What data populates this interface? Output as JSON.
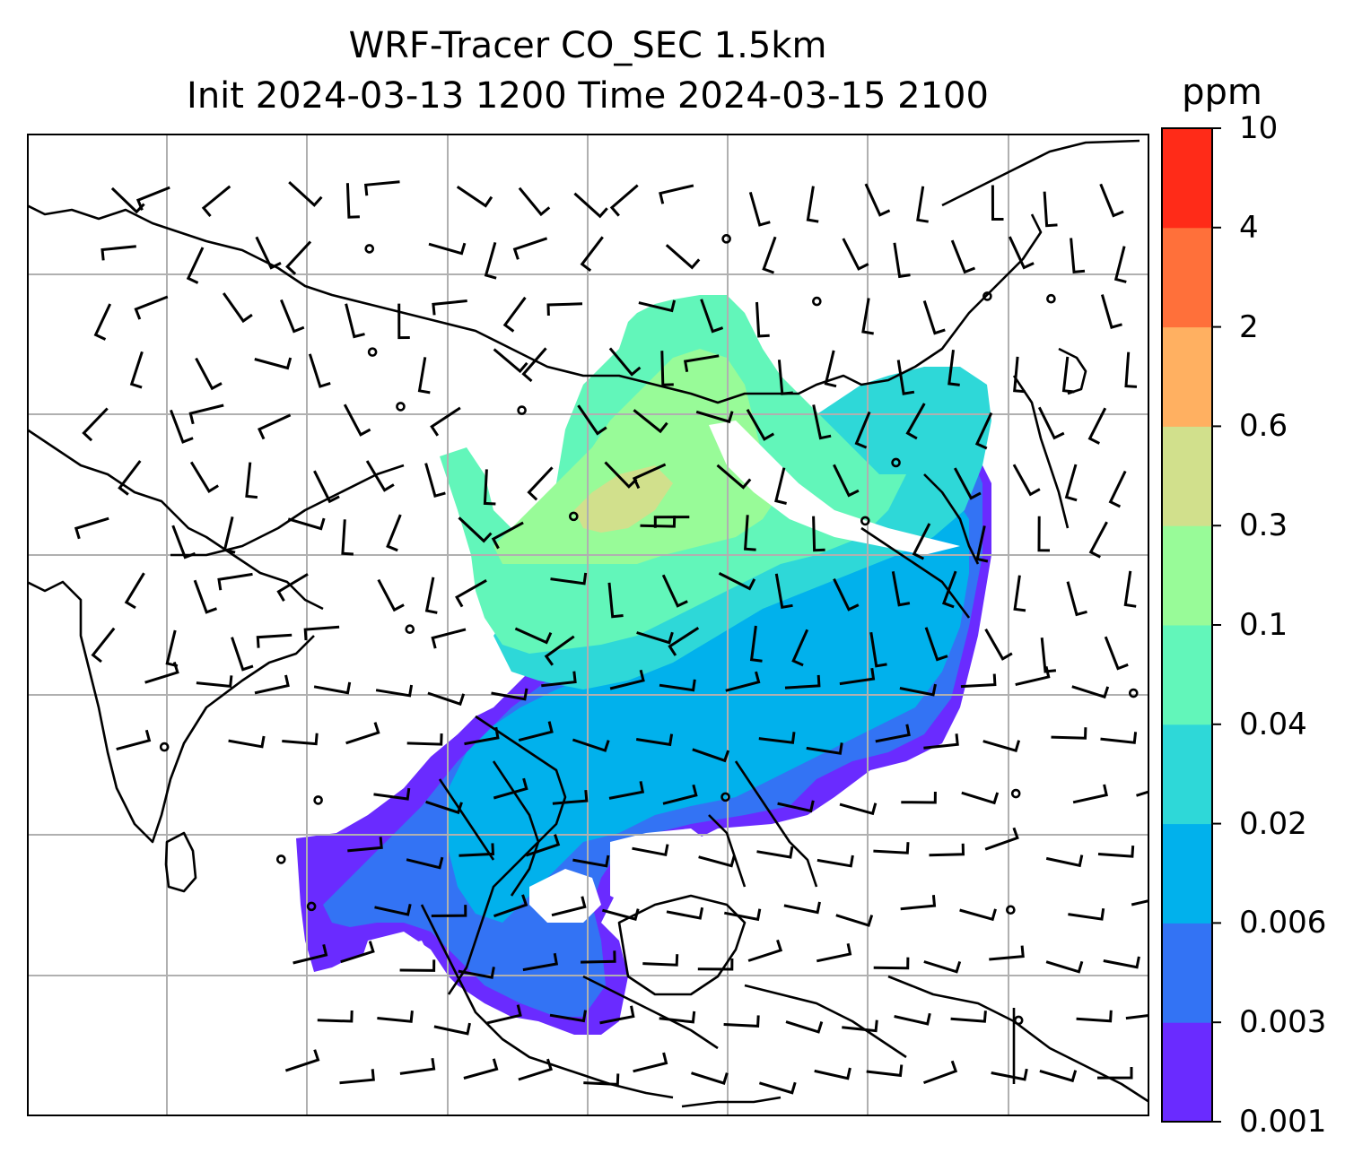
{
  "title_line1": "WRF-Tracer CO_SEC 1.5km",
  "title_line2": "Init 2024-03-13 1200 Time 2024-03-15 2100",
  "colorbar": {
    "unit": "ppm",
    "levels": [
      "0.001",
      "0.003",
      "0.006",
      "0.02",
      "0.04",
      "0.1",
      "0.3",
      "0.6",
      "2",
      "4",
      "10"
    ],
    "colors": [
      "#6a2bff",
      "#3373f4",
      "#01b1ec",
      "#2ed8d8",
      "#62f6ba",
      "#98fb98",
      "#d1e08c",
      "#ffb061",
      "#ff703a",
      "#ff2b18"
    ]
  },
  "map": {
    "coastline_color": "#000000",
    "grid_color": "#b0b0b0",
    "wind_barb_color": "#000000"
  }
}
